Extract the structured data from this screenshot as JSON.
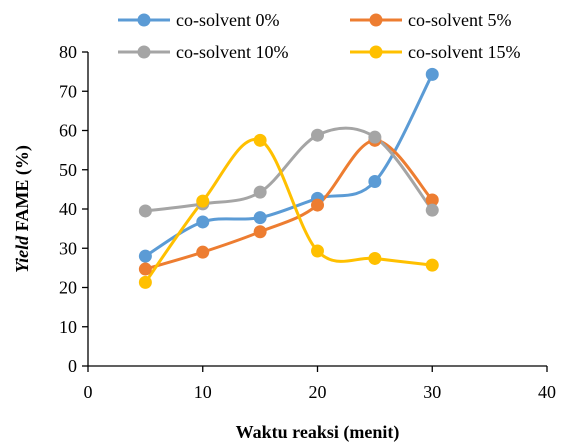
{
  "chart_data": {
    "type": "line",
    "xlabel": "Waktu reaksi (menit)",
    "ylabel_italic": "Yield",
    "ylabel_rest": " FAME (%)",
    "xlim": [
      0,
      40
    ],
    "ylim": [
      0,
      80
    ],
    "xticks": [
      0,
      10,
      20,
      30,
      40
    ],
    "yticks": [
      0,
      10,
      20,
      30,
      40,
      50,
      60,
      70,
      80
    ],
    "grid": false,
    "smooth": true,
    "legend_position": "top",
    "series": [
      {
        "name": "co-solvent 0%",
        "color": "#5b9bd5",
        "x": [
          5,
          10,
          15,
          20,
          25,
          30
        ],
        "y": [
          28,
          36.7,
          37.8,
          42.7,
          47,
          74.3
        ]
      },
      {
        "name": "co-solvent 5%",
        "color": "#ed7d31",
        "x": [
          5,
          10,
          15,
          20,
          25,
          30
        ],
        "y": [
          24.7,
          29,
          34.2,
          41,
          57.5,
          42.3
        ]
      },
      {
        "name": "co-solvent 10%",
        "color": "#a5a5a5",
        "x": [
          5,
          10,
          15,
          20,
          25,
          30
        ],
        "y": [
          39.5,
          41.3,
          44.3,
          58.8,
          58.3,
          39.7
        ]
      },
      {
        "name": "co-solvent 15%",
        "color": "#ffc000",
        "x": [
          5,
          10,
          15,
          20,
          25,
          30
        ],
        "y": [
          21.3,
          42,
          57.5,
          29.3,
          27.4,
          25.7
        ]
      }
    ]
  }
}
